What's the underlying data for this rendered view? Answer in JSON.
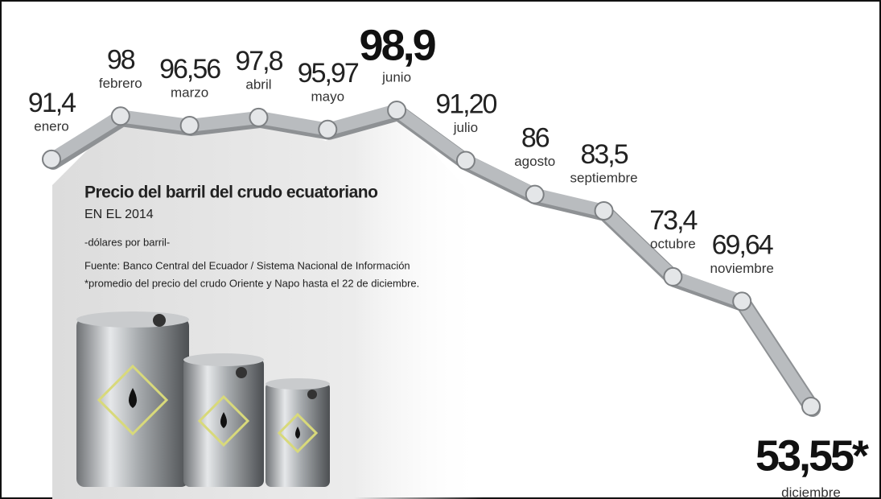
{
  "chart_data": {
    "type": "line",
    "title": "Precio del barril del crudo ecuatoriano",
    "subtitle": "EN EL 2014",
    "unit": "-dólares por barril-",
    "source": "Fuente: Banco Central del Ecuador / Sistema Nacional de Información",
    "note": "*promedio del precio del crudo Oriente y Napo hasta el 22 de diciembre.",
    "categories": [
      "enero",
      "febrero",
      "marzo",
      "abril",
      "mayo",
      "junio",
      "julio",
      "agosto",
      "septiembre",
      "octubre",
      "noviembre",
      "diciembre"
    ],
    "values": [
      91.4,
      98,
      96.56,
      97.8,
      95.97,
      98.9,
      91.2,
      86,
      83.5,
      73.4,
      69.64,
      53.55
    ],
    "value_labels": [
      "91,4",
      "98",
      "96,56",
      "97,8",
      "95,97",
      "98,9",
      "91,20",
      "86",
      "83,5",
      "73,4",
      "69,64",
      "53,55*"
    ],
    "color": "#b9bcbf"
  }
}
